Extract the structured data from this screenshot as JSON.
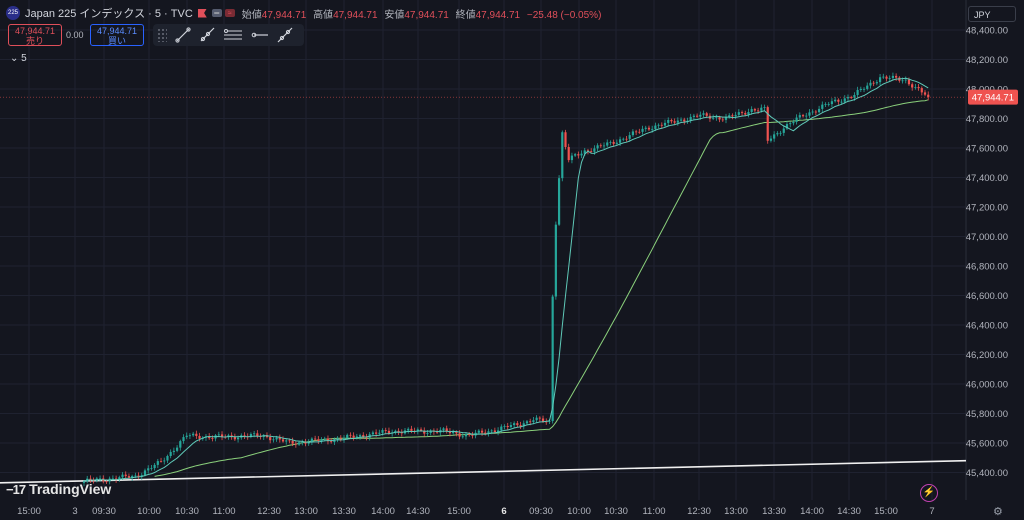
{
  "header": {
    "symbol_badge": "225",
    "symbol_title": "Japan 225 インデックス · 5 · TVC",
    "ohlc": [
      {
        "label": "始値",
        "value": "47,944.71"
      },
      {
        "label": "高値",
        "value": "47,944.71"
      },
      {
        "label": "安値",
        "value": "47,944.71"
      },
      {
        "label": "終値",
        "value": "47,944.71"
      }
    ],
    "change": "−25.48 (−0.05%)"
  },
  "trade": {
    "sell_price": "47,944.71",
    "sell_label": "売り",
    "spread": "0.00",
    "buy_price": "47,944.71",
    "buy_label": "買い"
  },
  "toolbar": {
    "icons": [
      "trend-line-icon",
      "ray-icon",
      "parallel-lines-icon",
      "horizontal-ray-icon",
      "extended-line-icon"
    ]
  },
  "interval": "5",
  "currency": "JPY",
  "watermark": "TradingView",
  "colors": {
    "up": "#26a69a",
    "down": "#ef5350",
    "ma_fast": "#5fc9b8",
    "ma_slow": "#8bd17c",
    "last_price_bg": "#ef5350"
  },
  "chart_data": {
    "type": "candlestick",
    "y_ticks": [
      "48,400.00",
      "48,200.00",
      "48,000.00",
      "47,800.00",
      "47,600.00",
      "47,400.00",
      "47,200.00",
      "47,000.00",
      "46,800.00",
      "46,600.00",
      "46,400.00",
      "46,200.00",
      "46,000.00",
      "45,800.00",
      "45,600.00",
      "45,400.00"
    ],
    "x_ticks": [
      "15:00",
      "3",
      "09:30",
      "10:00",
      "10:30",
      "11:00",
      "12:30",
      "13:00",
      "13:30",
      "14:00",
      "14:30",
      "15:00",
      "6",
      "09:30",
      "10:00",
      "10:30",
      "11:00",
      "12:30",
      "13:00",
      "13:30",
      "14:00",
      "14:30",
      "15:00",
      "7"
    ],
    "bold_x_ticks": [
      "6"
    ],
    "last_price": "47,944.71",
    "trend_line": {
      "from": 45330,
      "to": 45480
    },
    "anchor_points": [
      [
        0,
        45340
      ],
      [
        16,
        45375
      ],
      [
        24,
        45470
      ],
      [
        32,
        45650
      ],
      [
        40,
        45640
      ],
      [
        56,
        45650
      ],
      [
        64,
        45600
      ],
      [
        80,
        45630
      ],
      [
        96,
        45680
      ],
      [
        112,
        45680
      ],
      [
        120,
        45650
      ],
      [
        128,
        45690
      ],
      [
        136,
        45730
      ],
      [
        140,
        45760
      ],
      [
        145,
        45740
      ],
      [
        146,
        46600
      ],
      [
        147,
        47100
      ],
      [
        148,
        47400
      ],
      [
        149,
        47700
      ],
      [
        151,
        47520
      ],
      [
        156,
        47580
      ],
      [
        164,
        47630
      ],
      [
        176,
        47740
      ],
      [
        192,
        47820
      ],
      [
        200,
        47800
      ],
      [
        208,
        47860
      ],
      [
        212,
        47860
      ],
      [
        213,
        47650
      ],
      [
        218,
        47740
      ],
      [
        224,
        47820
      ],
      [
        232,
        47900
      ],
      [
        240,
        47960
      ],
      [
        248,
        48080
      ],
      [
        256,
        48060
      ],
      [
        262,
        47960
      ],
      [
        263,
        47944.71
      ]
    ]
  }
}
